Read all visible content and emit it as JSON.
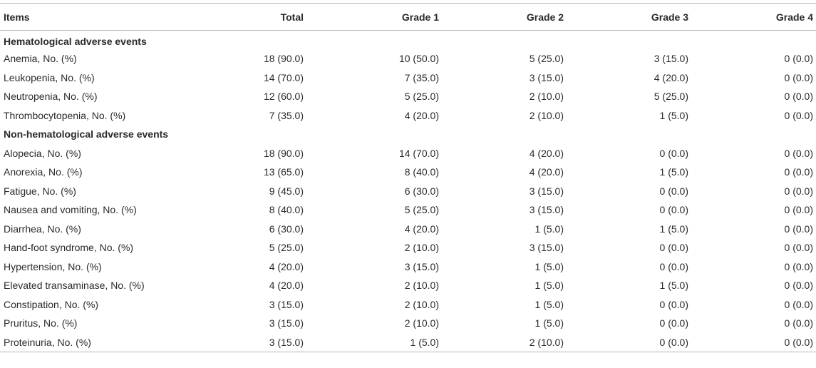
{
  "table": {
    "headers": [
      "Items",
      "Total",
      "Grade 1",
      "Grade 2",
      "Grade 3",
      "Grade 4"
    ],
    "sections": [
      {
        "title": "Hematological adverse events",
        "rows": [
          {
            "item": "Anemia, No. (%)",
            "total": "18 (90.0)",
            "g1": "10 (50.0)",
            "g2": "5 (25.0)",
            "g3": "3 (15.0)",
            "g4": "0 (0.0)"
          },
          {
            "item": "Leukopenia, No. (%)",
            "total": "14 (70.0)",
            "g1": "7 (35.0)",
            "g2": "3 (15.0)",
            "g3": "4 (20.0)",
            "g4": "0 (0.0)"
          },
          {
            "item": "Neutropenia, No. (%)",
            "total": "12 (60.0)",
            "g1": "5 (25.0)",
            "g2": "2 (10.0)",
            "g3": "5 (25.0)",
            "g4": "0 (0.0)"
          },
          {
            "item": "Thrombocytopenia, No. (%)",
            "total": "7 (35.0)",
            "g1": "4 (20.0)",
            "g2": "2 (10.0)",
            "g3": "1 (5.0)",
            "g4": "0 (0.0)"
          }
        ]
      },
      {
        "title": "Non-hematological adverse events",
        "rows": [
          {
            "item": "Alopecia, No. (%)",
            "total": "18 (90.0)",
            "g1": "14 (70.0)",
            "g2": "4 (20.0)",
            "g3": "0 (0.0)",
            "g4": "0 (0.0)"
          },
          {
            "item": "Anorexia, No. (%)",
            "total": "13 (65.0)",
            "g1": "8 (40.0)",
            "g2": "4 (20.0)",
            "g3": "1 (5.0)",
            "g4": "0 (0.0)"
          },
          {
            "item": "Fatigue, No. (%)",
            "total": "9 (45.0)",
            "g1": "6 (30.0)",
            "g2": "3 (15.0)",
            "g3": "0 (0.0)",
            "g4": "0 (0.0)"
          },
          {
            "item": "Nausea and vomiting, No. (%)",
            "total": "8 (40.0)",
            "g1": "5 (25.0)",
            "g2": "3 (15.0)",
            "g3": "0 (0.0)",
            "g4": "0 (0.0)"
          },
          {
            "item": "Diarrhea, No. (%)",
            "total": "6 (30.0)",
            "g1": "4 (20.0)",
            "g2": "1 (5.0)",
            "g3": "1 (5.0)",
            "g4": "0 (0.0)"
          },
          {
            "item": "Hand-foot syndrome, No. (%)",
            "total": "5 (25.0)",
            "g1": "2 (10.0)",
            "g2": "3 (15.0)",
            "g3": "0 (0.0)",
            "g4": "0 (0.0)"
          },
          {
            "item": "Hypertension, No. (%)",
            "total": "4 (20.0)",
            "g1": "3 (15.0)",
            "g2": "1 (5.0)",
            "g3": "0 (0.0)",
            "g4": "0 (0.0)"
          },
          {
            "item": "Elevated transaminase, No. (%)",
            "total": "4 (20.0)",
            "g1": "2 (10.0)",
            "g2": "1 (5.0)",
            "g3": "1 (5.0)",
            "g4": "0 (0.0)"
          },
          {
            "item": "Constipation, No. (%)",
            "total": "3 (15.0)",
            "g1": "2 (10.0)",
            "g2": "1 (5.0)",
            "g3": "0 (0.0)",
            "g4": "0 (0.0)"
          },
          {
            "item": "Pruritus, No. (%)",
            "total": "3 (15.0)",
            "g1": "2 (10.0)",
            "g2": "1 (5.0)",
            "g3": "0 (0.0)",
            "g4": "0 (0.0)"
          },
          {
            "item": "Proteinuria, No. (%)",
            "total": "3 (15.0)",
            "g1": "1 (5.0)",
            "g2": "2 (10.0)",
            "g3": "0 (0.0)",
            "g4": "0 (0.0)"
          }
        ]
      }
    ]
  }
}
